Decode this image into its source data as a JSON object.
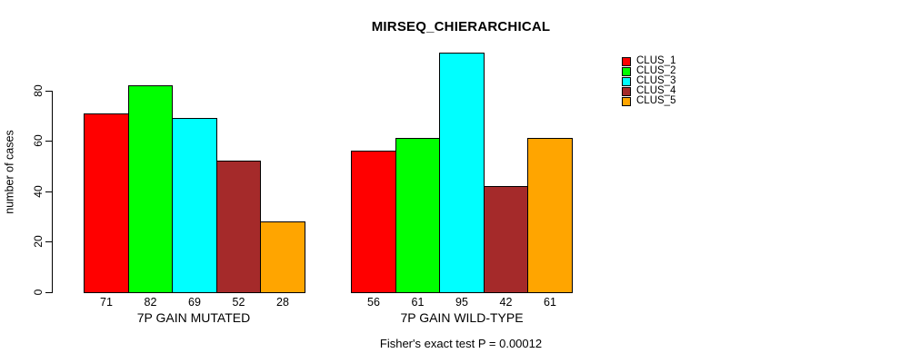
{
  "figure": {
    "title": "MIRSEQ_CHIERARCHICAL",
    "subtitle": "Fisher's exact test P = 0.00012"
  },
  "chart_data": {
    "type": "bar",
    "title": "MIRSEQ_CHIERARCHICAL",
    "subtitle": "Fisher's exact test P = 0.00012",
    "ylabel": "number of cases",
    "xlabel": "",
    "categories": [
      "7P GAIN MUTATED",
      "7P GAIN WILD-TYPE"
    ],
    "series": [
      {
        "name": "CLUS_1",
        "color": "#FF0000",
        "values": [
          71,
          56
        ]
      },
      {
        "name": "CLUS_2",
        "color": "#00FF00",
        "values": [
          82,
          61
        ]
      },
      {
        "name": "CLUS_3",
        "color": "#00FFFF",
        "values": [
          69,
          95
        ]
      },
      {
        "name": "CLUS_4",
        "color": "#A52A2A",
        "values": [
          52,
          42
        ]
      },
      {
        "name": "CLUS_5",
        "color": "#FFA500",
        "values": [
          28,
          61
        ]
      }
    ],
    "y_ticks": [
      0,
      20,
      40,
      60,
      80
    ],
    "ylim": [
      0,
      95
    ],
    "bar_value_labels": true,
    "legend_position": "right",
    "grid": false,
    "background": "#FFFFFF",
    "axis_color": "#000000"
  }
}
